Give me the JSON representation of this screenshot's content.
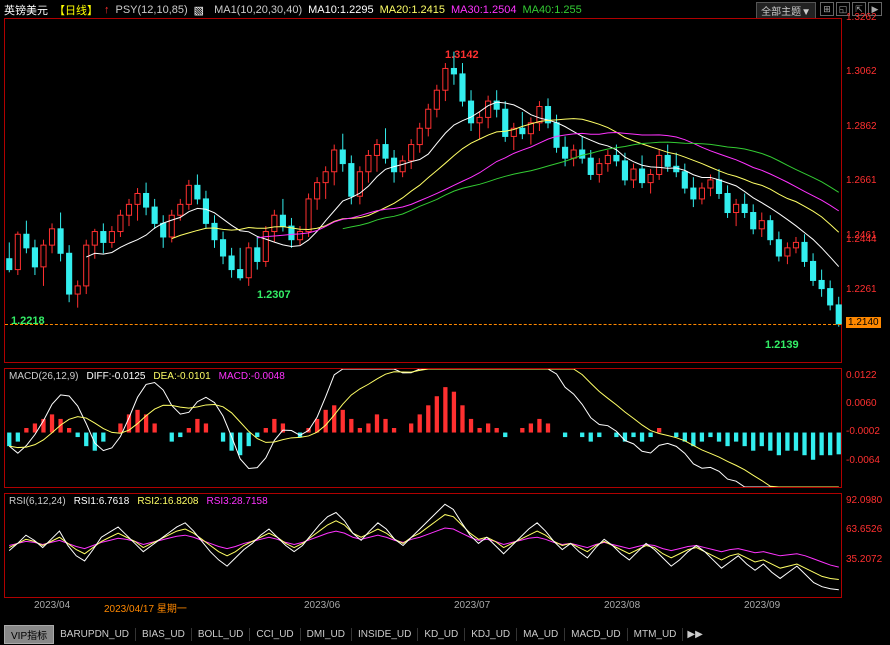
{
  "header": {
    "symbol": "英镑美元",
    "timeframe": "【日线】",
    "psy": "PSY(12,10,85)",
    "ma_set": "MA1(10,20,30,40)",
    "ma10_label": "MA10:1.2295",
    "ma20_label": "MA20:1.2415",
    "ma30_label": "MA30:1.2504",
    "ma40_label": "MA40:1.255",
    "theme_dropdown": "全部主题▼"
  },
  "price": {
    "ylim": [
      1.2,
      1.3262
    ],
    "yticks": [
      1.3262,
      1.3062,
      1.2862,
      1.2661,
      1.2461,
      1.2261
    ],
    "current_marker": "1.2444",
    "last_marker": "1.2140",
    "peak_label": "1.3142",
    "low1_label": "1.2218",
    "low2_label": "1.2307",
    "low3_label": "1.2139",
    "dashed_y": 1.214,
    "candles": [
      {
        "o": 1.238,
        "h": 1.244,
        "l": 1.233,
        "c": 1.234
      },
      {
        "o": 1.234,
        "h": 1.248,
        "l": 1.232,
        "c": 1.247
      },
      {
        "o": 1.247,
        "h": 1.252,
        "l": 1.24,
        "c": 1.242
      },
      {
        "o": 1.242,
        "h": 1.245,
        "l": 1.232,
        "c": 1.235
      },
      {
        "o": 1.235,
        "h": 1.245,
        "l": 1.228,
        "c": 1.243
      },
      {
        "o": 1.243,
        "h": 1.251,
        "l": 1.24,
        "c": 1.249
      },
      {
        "o": 1.249,
        "h": 1.255,
        "l": 1.237,
        "c": 1.24
      },
      {
        "o": 1.24,
        "h": 1.243,
        "l": 1.222,
        "c": 1.225
      },
      {
        "o": 1.225,
        "h": 1.23,
        "l": 1.22,
        "c": 1.228
      },
      {
        "o": 1.228,
        "h": 1.245,
        "l": 1.225,
        "c": 1.243
      },
      {
        "o": 1.243,
        "h": 1.249,
        "l": 1.238,
        "c": 1.248
      },
      {
        "o": 1.248,
        "h": 1.251,
        "l": 1.24,
        "c": 1.244
      },
      {
        "o": 1.244,
        "h": 1.25,
        "l": 1.242,
        "c": 1.248
      },
      {
        "o": 1.248,
        "h": 1.256,
        "l": 1.246,
        "c": 1.254
      },
      {
        "o": 1.254,
        "h": 1.26,
        "l": 1.25,
        "c": 1.258
      },
      {
        "o": 1.258,
        "h": 1.264,
        "l": 1.252,
        "c": 1.262
      },
      {
        "o": 1.262,
        "h": 1.266,
        "l": 1.254,
        "c": 1.257
      },
      {
        "o": 1.257,
        "h": 1.26,
        "l": 1.249,
        "c": 1.251
      },
      {
        "o": 1.251,
        "h": 1.254,
        "l": 1.242,
        "c": 1.246
      },
      {
        "o": 1.246,
        "h": 1.256,
        "l": 1.244,
        "c": 1.254
      },
      {
        "o": 1.254,
        "h": 1.26,
        "l": 1.252,
        "c": 1.258
      },
      {
        "o": 1.258,
        "h": 1.267,
        "l": 1.256,
        "c": 1.265
      },
      {
        "o": 1.265,
        "h": 1.269,
        "l": 1.258,
        "c": 1.26
      },
      {
        "o": 1.26,
        "h": 1.263,
        "l": 1.249,
        "c": 1.251
      },
      {
        "o": 1.251,
        "h": 1.254,
        "l": 1.242,
        "c": 1.245
      },
      {
        "o": 1.245,
        "h": 1.248,
        "l": 1.236,
        "c": 1.239
      },
      {
        "o": 1.239,
        "h": 1.242,
        "l": 1.231,
        "c": 1.234
      },
      {
        "o": 1.234,
        "h": 1.242,
        "l": 1.23,
        "c": 1.231
      },
      {
        "o": 1.231,
        "h": 1.244,
        "l": 1.228,
        "c": 1.242
      },
      {
        "o": 1.242,
        "h": 1.246,
        "l": 1.234,
        "c": 1.237
      },
      {
        "o": 1.237,
        "h": 1.25,
        "l": 1.235,
        "c": 1.248
      },
      {
        "o": 1.248,
        "h": 1.256,
        "l": 1.244,
        "c": 1.254
      },
      {
        "o": 1.254,
        "h": 1.26,
        "l": 1.248,
        "c": 1.25
      },
      {
        "o": 1.25,
        "h": 1.253,
        "l": 1.242,
        "c": 1.245
      },
      {
        "o": 1.245,
        "h": 1.25,
        "l": 1.243,
        "c": 1.248
      },
      {
        "o": 1.248,
        "h": 1.262,
        "l": 1.246,
        "c": 1.26
      },
      {
        "o": 1.26,
        "h": 1.268,
        "l": 1.256,
        "c": 1.266
      },
      {
        "o": 1.266,
        "h": 1.272,
        "l": 1.26,
        "c": 1.27
      },
      {
        "o": 1.27,
        "h": 1.28,
        "l": 1.265,
        "c": 1.278
      },
      {
        "o": 1.278,
        "h": 1.284,
        "l": 1.27,
        "c": 1.273
      },
      {
        "o": 1.273,
        "h": 1.276,
        "l": 1.258,
        "c": 1.261
      },
      {
        "o": 1.261,
        "h": 1.272,
        "l": 1.258,
        "c": 1.27
      },
      {
        "o": 1.27,
        "h": 1.278,
        "l": 1.266,
        "c": 1.276
      },
      {
        "o": 1.276,
        "h": 1.282,
        "l": 1.27,
        "c": 1.28
      },
      {
        "o": 1.28,
        "h": 1.286,
        "l": 1.273,
        "c": 1.275
      },
      {
        "o": 1.275,
        "h": 1.278,
        "l": 1.266,
        "c": 1.27
      },
      {
        "o": 1.27,
        "h": 1.276,
        "l": 1.268,
        "c": 1.274
      },
      {
        "o": 1.274,
        "h": 1.282,
        "l": 1.271,
        "c": 1.28
      },
      {
        "o": 1.28,
        "h": 1.288,
        "l": 1.277,
        "c": 1.286
      },
      {
        "o": 1.286,
        "h": 1.295,
        "l": 1.283,
        "c": 1.293
      },
      {
        "o": 1.293,
        "h": 1.302,
        "l": 1.29,
        "c": 1.3
      },
      {
        "o": 1.3,
        "h": 1.31,
        "l": 1.296,
        "c": 1.308
      },
      {
        "o": 1.308,
        "h": 1.3142,
        "l": 1.302,
        "c": 1.306
      },
      {
        "o": 1.306,
        "h": 1.31,
        "l": 1.294,
        "c": 1.296
      },
      {
        "o": 1.296,
        "h": 1.3,
        "l": 1.285,
        "c": 1.288
      },
      {
        "o": 1.288,
        "h": 1.292,
        "l": 1.282,
        "c": 1.29
      },
      {
        "o": 1.29,
        "h": 1.298,
        "l": 1.286,
        "c": 1.296
      },
      {
        "o": 1.296,
        "h": 1.3,
        "l": 1.29,
        "c": 1.293
      },
      {
        "o": 1.293,
        "h": 1.296,
        "l": 1.281,
        "c": 1.283
      },
      {
        "o": 1.283,
        "h": 1.288,
        "l": 1.278,
        "c": 1.286
      },
      {
        "o": 1.286,
        "h": 1.292,
        "l": 1.282,
        "c": 1.284
      },
      {
        "o": 1.284,
        "h": 1.29,
        "l": 1.28,
        "c": 1.288
      },
      {
        "o": 1.288,
        "h": 1.296,
        "l": 1.285,
        "c": 1.294
      },
      {
        "o": 1.294,
        "h": 1.297,
        "l": 1.286,
        "c": 1.288
      },
      {
        "o": 1.288,
        "h": 1.291,
        "l": 1.277,
        "c": 1.279
      },
      {
        "o": 1.279,
        "h": 1.283,
        "l": 1.272,
        "c": 1.275
      },
      {
        "o": 1.275,
        "h": 1.28,
        "l": 1.272,
        "c": 1.278
      },
      {
        "o": 1.278,
        "h": 1.283,
        "l": 1.273,
        "c": 1.275
      },
      {
        "o": 1.275,
        "h": 1.278,
        "l": 1.267,
        "c": 1.269
      },
      {
        "o": 1.269,
        "h": 1.275,
        "l": 1.266,
        "c": 1.273
      },
      {
        "o": 1.273,
        "h": 1.278,
        "l": 1.27,
        "c": 1.276
      },
      {
        "o": 1.276,
        "h": 1.28,
        "l": 1.272,
        "c": 1.274
      },
      {
        "o": 1.274,
        "h": 1.277,
        "l": 1.265,
        "c": 1.267
      },
      {
        "o": 1.267,
        "h": 1.273,
        "l": 1.264,
        "c": 1.271
      },
      {
        "o": 1.271,
        "h": 1.276,
        "l": 1.264,
        "c": 1.266
      },
      {
        "o": 1.266,
        "h": 1.271,
        "l": 1.262,
        "c": 1.269
      },
      {
        "o": 1.269,
        "h": 1.278,
        "l": 1.267,
        "c": 1.276
      },
      {
        "o": 1.276,
        "h": 1.28,
        "l": 1.27,
        "c": 1.272
      },
      {
        "o": 1.272,
        "h": 1.277,
        "l": 1.268,
        "c": 1.27
      },
      {
        "o": 1.27,
        "h": 1.273,
        "l": 1.262,
        "c": 1.264
      },
      {
        "o": 1.264,
        "h": 1.268,
        "l": 1.257,
        "c": 1.26
      },
      {
        "o": 1.26,
        "h": 1.266,
        "l": 1.258,
        "c": 1.264
      },
      {
        "o": 1.264,
        "h": 1.269,
        "l": 1.261,
        "c": 1.267
      },
      {
        "o": 1.267,
        "h": 1.271,
        "l": 1.26,
        "c": 1.262
      },
      {
        "o": 1.262,
        "h": 1.265,
        "l": 1.253,
        "c": 1.255
      },
      {
        "o": 1.255,
        "h": 1.26,
        "l": 1.25,
        "c": 1.258
      },
      {
        "o": 1.258,
        "h": 1.262,
        "l": 1.253,
        "c": 1.255
      },
      {
        "o": 1.255,
        "h": 1.258,
        "l": 1.247,
        "c": 1.249
      },
      {
        "o": 1.249,
        "h": 1.255,
        "l": 1.246,
        "c": 1.252
      },
      {
        "o": 1.252,
        "h": 1.254,
        "l": 1.243,
        "c": 1.245
      },
      {
        "o": 1.245,
        "h": 1.248,
        "l": 1.237,
        "c": 1.239
      },
      {
        "o": 1.239,
        "h": 1.244,
        "l": 1.236,
        "c": 1.242
      },
      {
        "o": 1.242,
        "h": 1.246,
        "l": 1.24,
        "c": 1.244
      },
      {
        "o": 1.244,
        "h": 1.247,
        "l": 1.235,
        "c": 1.237
      },
      {
        "o": 1.237,
        "h": 1.24,
        "l": 1.228,
        "c": 1.23
      },
      {
        "o": 1.23,
        "h": 1.234,
        "l": 1.224,
        "c": 1.227
      },
      {
        "o": 1.227,
        "h": 1.23,
        "l": 1.219,
        "c": 1.221
      },
      {
        "o": 1.221,
        "h": 1.224,
        "l": 1.213,
        "c": 1.214
      }
    ],
    "ma_colors": {
      "ma10": "#ffffff",
      "ma20": "#ffff66",
      "ma30": "#ff33ff",
      "ma40": "#33cc33"
    }
  },
  "macd": {
    "label": "MACD(26,12,9)",
    "diff": "DIFF:-0.0125",
    "dea": "DEA:-0.0101",
    "macd_v": "MACD:-0.0048",
    "ylim": [
      -0.012,
      0.014
    ],
    "yticks": [
      0.0122,
      0.006,
      -0.0002,
      -0.0064
    ],
    "bars": [
      -0.003,
      -0.002,
      0.001,
      0.002,
      0.003,
      0.004,
      0.003,
      0.001,
      -0.001,
      -0.003,
      -0.004,
      -0.002,
      0.0,
      0.002,
      0.004,
      0.005,
      0.004,
      0.002,
      0.0,
      -0.002,
      -0.001,
      0.001,
      0.003,
      0.002,
      0.0,
      -0.002,
      -0.004,
      -0.005,
      -0.003,
      -0.001,
      0.001,
      0.003,
      0.002,
      0.0,
      -0.001,
      0.001,
      0.003,
      0.005,
      0.006,
      0.005,
      0.003,
      0.001,
      0.002,
      0.004,
      0.003,
      0.001,
      0.0,
      0.002,
      0.004,
      0.006,
      0.008,
      0.01,
      0.009,
      0.006,
      0.003,
      0.001,
      0.002,
      0.001,
      -0.001,
      0.0,
      0.001,
      0.002,
      0.003,
      0.002,
      0.0,
      -0.001,
      0.0,
      -0.001,
      -0.002,
      -0.001,
      0.0,
      -0.001,
      -0.002,
      -0.001,
      -0.002,
      -0.001,
      0.001,
      0.0,
      -0.001,
      -0.002,
      -0.003,
      -0.002,
      -0.001,
      -0.002,
      -0.003,
      -0.002,
      -0.003,
      -0.004,
      -0.003,
      -0.004,
      -0.005,
      -0.004,
      -0.004,
      -0.005,
      -0.006,
      -0.005,
      -0.005,
      -0.0048
    ],
    "diff_line_color": "#ffffff",
    "dea_line_color": "#ffff66"
  },
  "rsi": {
    "label": "RSI(6,12,24)",
    "rsi1": "RSI1:6.7618",
    "rsi2": "RSI2:16.8208",
    "rsi3": "RSI3:28.7158",
    "ylim": [
      0,
      100
    ],
    "yticks": [
      92.098,
      63.6526,
      35.2072
    ],
    "rsi1_color": "#ffffff",
    "rsi2_color": "#ffff66",
    "rsi3_color": "#ff33ff",
    "rsi1_vals": [
      45,
      52,
      60,
      55,
      48,
      56,
      64,
      50,
      40,
      35,
      46,
      58,
      63,
      68,
      60,
      52,
      44,
      50,
      56,
      62,
      68,
      72,
      64,
      54,
      44,
      36,
      30,
      38,
      46,
      52,
      60,
      66,
      58,
      50,
      44,
      50,
      60,
      70,
      78,
      82,
      74,
      62,
      55,
      64,
      72,
      66,
      56,
      50,
      58,
      66,
      74,
      82,
      90,
      85,
      72,
      60,
      52,
      58,
      50,
      42,
      50,
      58,
      66,
      72,
      64,
      54,
      46,
      52,
      44,
      38,
      48,
      56,
      50,
      42,
      36,
      44,
      52,
      46,
      38,
      30,
      36,
      44,
      50,
      44,
      36,
      28,
      34,
      40,
      32,
      26,
      32,
      24,
      18,
      24,
      30,
      22,
      14,
      10,
      8,
      7
    ],
    "rsi2_vals": [
      48,
      52,
      56,
      54,
      50,
      54,
      58,
      52,
      46,
      42,
      48,
      54,
      58,
      62,
      58,
      54,
      48,
      52,
      56,
      60,
      64,
      66,
      62,
      56,
      50,
      44,
      40,
      44,
      50,
      54,
      58,
      62,
      58,
      52,
      48,
      52,
      58,
      64,
      70,
      74,
      70,
      62,
      58,
      62,
      66,
      62,
      56,
      52,
      58,
      62,
      68,
      74,
      80,
      78,
      70,
      62,
      56,
      58,
      54,
      48,
      52,
      56,
      60,
      64,
      60,
      54,
      50,
      52,
      48,
      44,
      50,
      54,
      50,
      46,
      42,
      46,
      50,
      48,
      42,
      38,
      42,
      46,
      48,
      44,
      40,
      36,
      40,
      42,
      38,
      34,
      36,
      32,
      28,
      30,
      32,
      28,
      24,
      20,
      18,
      17
    ],
    "rsi3_vals": [
      50,
      52,
      54,
      53,
      51,
      53,
      55,
      52,
      49,
      47,
      50,
      53,
      55,
      57,
      56,
      54,
      51,
      53,
      55,
      57,
      59,
      60,
      58,
      55,
      52,
      49,
      47,
      49,
      52,
      54,
      56,
      58,
      56,
      53,
      51,
      53,
      56,
      59,
      62,
      64,
      62,
      58,
      56,
      58,
      60,
      58,
      55,
      53,
      56,
      58,
      61,
      64,
      67,
      66,
      62,
      58,
      55,
      56,
      54,
      51,
      53,
      55,
      57,
      58,
      56,
      53,
      51,
      52,
      50,
      48,
      51,
      53,
      51,
      49,
      47,
      49,
      51,
      50,
      47,
      45,
      47,
      49,
      50,
      48,
      46,
      44,
      46,
      47,
      45,
      43,
      44,
      42,
      40,
      41,
      42,
      40,
      37,
      34,
      31,
      29
    ]
  },
  "xaxis": {
    "ticks": [
      "2023/04",
      "2023/04/17 星期一",
      "2023/06",
      "2023/07",
      "2023/08",
      "2023/09"
    ],
    "positions": [
      30,
      100,
      300,
      450,
      600,
      740
    ]
  },
  "tabs": {
    "vip": "VIP指标",
    "items": [
      "BARUPDN_UD",
      "BIAS_UD",
      "BOLL_UD",
      "CCI_UD",
      "DMI_UD",
      "INSIDE_UD",
      "KD_UD",
      "KDJ_UD",
      "MA_UD",
      "MACD_UD",
      "MTM_UD"
    ]
  }
}
